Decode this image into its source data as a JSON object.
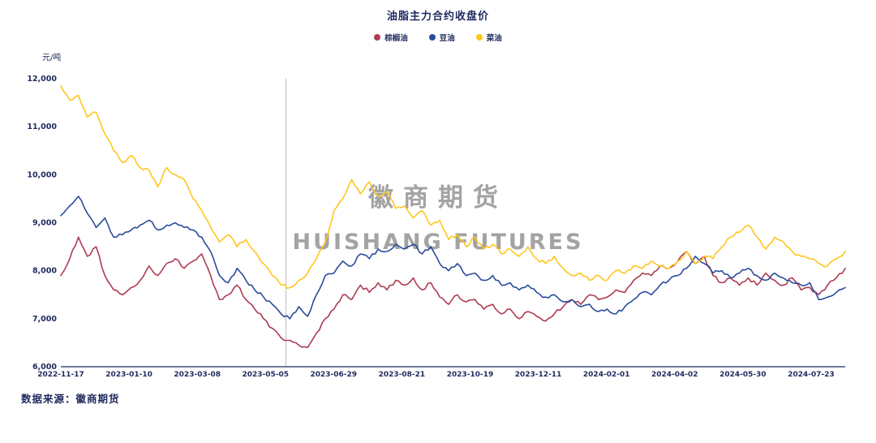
{
  "page": {
    "title": "油脂主力合约收盘价"
  },
  "unit_label": "元/吨",
  "source_label": "数据来源：徽商期货",
  "watermark": {
    "line1": "徽商期货",
    "line2": "HUISHANG FUTURES"
  },
  "legend": [
    {
      "label": "棕榈油",
      "color": "#ae3b52"
    },
    {
      "label": "豆油",
      "color": "#2a4b9c"
    },
    {
      "label": "菜油",
      "color": "#ffc61e"
    }
  ],
  "colors": {
    "axis_text": "#1f2a5e",
    "axis_line": "#1f2a5e",
    "vline": "#bfbfbf",
    "watermark": "#a3a3a3"
  },
  "chart_data": {
    "type": "line",
    "title": "油脂主力合约收盘价",
    "xlabel": "",
    "ylabel": "元/吨",
    "ylim": [
      6000,
      12000
    ],
    "yticks": [
      6000,
      7000,
      8000,
      9000,
      10000,
      11000,
      12000
    ],
    "grid": false,
    "legend_position": "top",
    "vline_x_frac": 0.287,
    "x_tick_count": 12,
    "x_tick_span": 11.5,
    "xticklabels": [
      "2022-11-17",
      "2023-01-10",
      "2023-03-08",
      "2023-05-05",
      "2023-06-29",
      "2023-08-21",
      "2023-10-19",
      "2023-12-11",
      "2024-02-01",
      "2024-04-02",
      "2024-05-30",
      "2024-07-23"
    ],
    "series": [
      {
        "name": "棕榈油",
        "color": "#ae3b52",
        "values": [
          7900,
          8250,
          8700,
          8300,
          8500,
          7900,
          7600,
          7500,
          7650,
          7800,
          8100,
          7900,
          8150,
          8250,
          8050,
          8200,
          8350,
          7900,
          7400,
          7500,
          7700,
          7400,
          7200,
          7000,
          6800,
          6600,
          6550,
          6450,
          6400,
          6700,
          7000,
          7200,
          7500,
          7400,
          7700,
          7550,
          7750,
          7600,
          7800,
          7700,
          7850,
          7600,
          7750,
          7450,
          7300,
          7500,
          7350,
          7400,
          7200,
          7300,
          7100,
          7200,
          7000,
          7150,
          7050,
          6950,
          7100,
          7250,
          7400,
          7300,
          7500,
          7400,
          7450,
          7600,
          7550,
          7800,
          7950,
          7900,
          8100,
          8050,
          8200,
          8400,
          8150,
          8300,
          7900,
          7750,
          7850,
          7700,
          7850,
          7700,
          7950,
          7800,
          7700,
          7850,
          7600,
          7650,
          7500,
          7700,
          7850,
          8050
        ]
      },
      {
        "name": "豆油",
        "color": "#2a4b9c",
        "values": [
          9150,
          9350,
          9550,
          9200,
          8900,
          9100,
          8700,
          8750,
          8850,
          8950,
          9050,
          8850,
          8950,
          9000,
          8900,
          8850,
          8700,
          8400,
          7900,
          7750,
          8050,
          7800,
          7600,
          7450,
          7300,
          7100,
          7000,
          7250,
          7050,
          7500,
          7900,
          7950,
          8200,
          8100,
          8350,
          8250,
          8450,
          8400,
          8550,
          8450,
          8550,
          8350,
          8500,
          8150,
          8000,
          8150,
          7900,
          7950,
          7800,
          7900,
          7700,
          7750,
          7600,
          7700,
          7550,
          7450,
          7500,
          7350,
          7400,
          7250,
          7300,
          7150,
          7200,
          7100,
          7250,
          7400,
          7550,
          7500,
          7700,
          7800,
          7900,
          8050,
          8300,
          8150,
          7950,
          8000,
          7850,
          7950,
          8050,
          7900,
          7800,
          7950,
          7850,
          7750,
          7700,
          7750,
          7400,
          7450,
          7550,
          7650
        ]
      },
      {
        "name": "菜油",
        "color": "#ffc61e",
        "values": [
          11850,
          11550,
          11650,
          11200,
          11300,
          10850,
          10500,
          10250,
          10400,
          10150,
          10100,
          9750,
          10150,
          10000,
          9900,
          9500,
          9250,
          8900,
          8600,
          8750,
          8500,
          8650,
          8400,
          8150,
          7900,
          7700,
          7650,
          7800,
          7950,
          8250,
          8600,
          9250,
          9500,
          9900,
          9600,
          9850,
          9550,
          9650,
          9300,
          9350,
          9100,
          9250,
          8950,
          9050,
          8650,
          8750,
          8500,
          8700,
          8450,
          8550,
          8350,
          8450,
          8300,
          8500,
          8250,
          8150,
          8300,
          8050,
          7900,
          7950,
          7800,
          7900,
          7800,
          8000,
          7950,
          8100,
          8050,
          8200,
          8100,
          8050,
          8200,
          8400,
          8150,
          8300,
          8250,
          8500,
          8700,
          8800,
          8950,
          8700,
          8450,
          8700,
          8600,
          8400,
          8300,
          8250,
          8150,
          8100,
          8250,
          8400
        ]
      }
    ]
  }
}
